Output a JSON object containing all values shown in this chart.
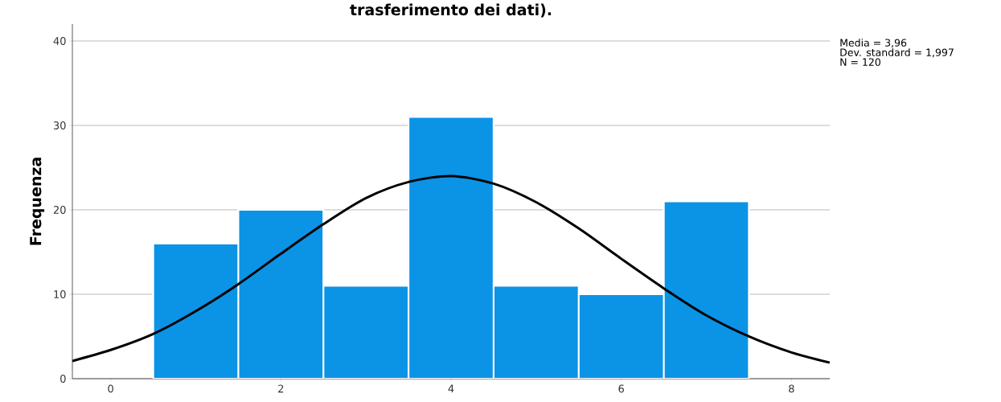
{
  "chart_data": {
    "type": "histogram",
    "title": "trasferimento dei dati).",
    "ylabel": "Frequenza",
    "bins": [
      0.5,
      1.5,
      2.5,
      3.5,
      4.5,
      5.5,
      6.5,
      7.5
    ],
    "values": [
      16,
      20,
      11,
      31,
      11,
      10,
      21
    ],
    "color": "#0b93e6",
    "series": [
      {
        "type": "line",
        "color": "#000000",
        "x": [
          -0.45,
          0,
          0.5,
          1,
          1.5,
          2,
          2.5,
          3,
          3.5,
          4,
          4.5,
          5,
          5.5,
          6,
          6.5,
          7,
          7.5,
          8,
          8.45
        ],
        "values": [
          2.1,
          3.4,
          5.3,
          8.0,
          11.2,
          14.8,
          18.3,
          21.4,
          23.3,
          24.0,
          23.1,
          20.9,
          17.8,
          14.2,
          10.7,
          7.5,
          5.0,
          3.1,
          1.9
        ]
      }
    ],
    "xlim": [
      -0.45,
      8.45
    ],
    "ylim": [
      0,
      42
    ],
    "xticks": [
      0,
      2,
      4,
      6,
      8
    ],
    "yticks": [
      0,
      10,
      20,
      30,
      40
    ],
    "grid": "y",
    "annotations": [
      "Media = 3,96",
      "Dev. standard = 1,997",
      "N = 120"
    ]
  }
}
